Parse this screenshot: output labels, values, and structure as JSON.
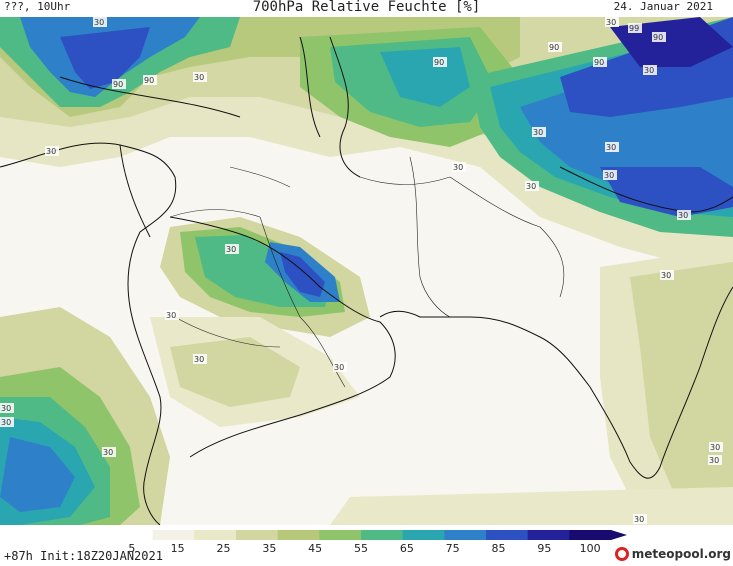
{
  "header": {
    "left": "???, 10Uhr",
    "title": "700hPa Relative Feuchte [%]",
    "date": "24. Januar 2021"
  },
  "footer": {
    "init": "+87h Init:18Z20JAN2021",
    "logo": "meteopool.org"
  },
  "colorbar": {
    "labels": [
      "5",
      "15",
      "25",
      "35",
      "45",
      "55",
      "65",
      "75",
      "85",
      "95",
      "100"
    ],
    "colors": [
      "#ffffff",
      "#f4f2e6",
      "#e9e8c8",
      "#d2d6a0",
      "#b8c87a",
      "#8fc46a",
      "#4fba86",
      "#2aa6b0",
      "#2e80c8",
      "#2d50c2",
      "#24229a",
      "#180a70"
    ]
  },
  "contour_labels": [
    "90",
    "90",
    "90",
    "90",
    "99",
    "90",
    "90",
    "30",
    "30",
    "30",
    "30",
    "30",
    "30",
    "30",
    "30",
    "30",
    "30",
    "30",
    "30",
    "30",
    "30",
    "30",
    "30",
    "30",
    "30",
    "30",
    "30",
    "30",
    "30"
  ]
}
